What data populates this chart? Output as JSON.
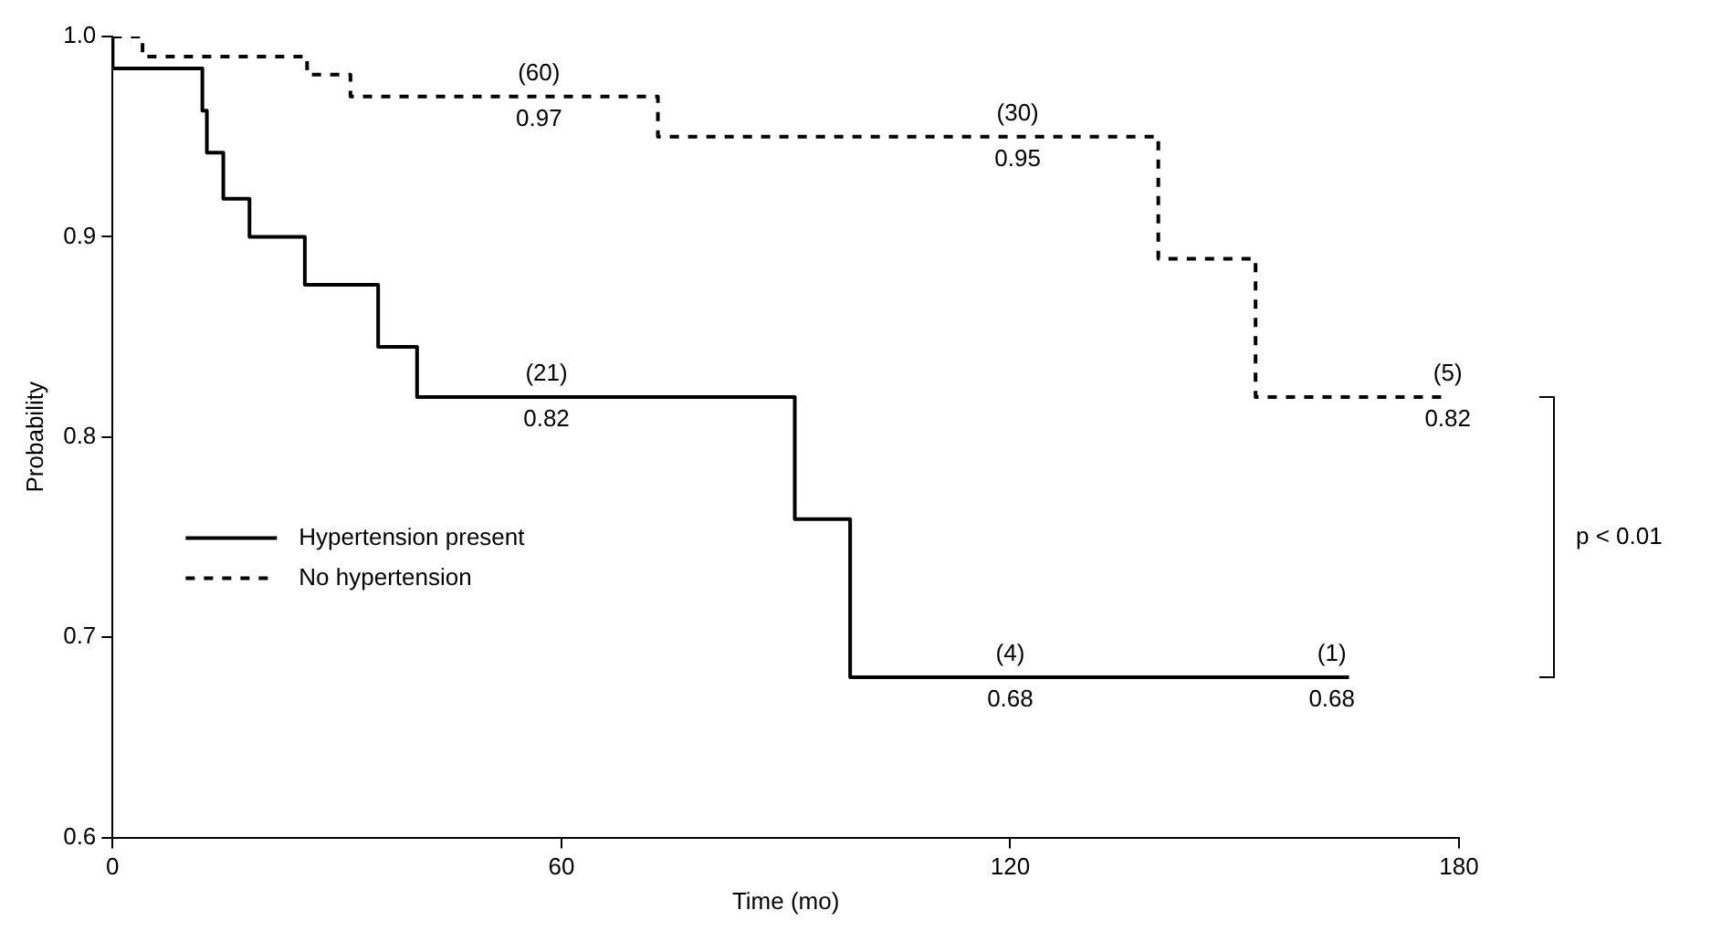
{
  "chart_data": {
    "type": "step",
    "xlabel": "Time (mo)",
    "ylabel": "Probability",
    "xlim": [
      0,
      180
    ],
    "xticks": [
      0,
      60,
      120,
      180
    ],
    "ylim": [
      0.6,
      1.0
    ],
    "yticks": [
      0.6,
      0.7,
      0.8,
      0.9,
      {
        "value": 1,
        "label": "1.0"
      }
    ],
    "grid": false,
    "legend": "bottom left",
    "marker": "none",
    "series": [
      {
        "name": "Hypertension present",
        "color": "#000000",
        "line_style": "solid",
        "x": [
          0,
          0,
          12,
          12.6,
          14.8,
          18.3,
          25.7,
          35.5,
          40.7,
          91.2,
          98.6,
          165.3
        ],
        "values": [
          1,
          0.984,
          0.963,
          0.942,
          0.919,
          0.9,
          0.876,
          0.845,
          0.82,
          0.759,
          0.68,
          0.68
        ]
      },
      {
        "name": "No hypertension",
        "color": "#000000",
        "line_style": "dashed",
        "x": [
          0,
          4,
          26,
          31.8,
          72.9,
          139.8,
          152.8,
          178.5
        ],
        "values": [
          1,
          0.99,
          0.981,
          0.97,
          0.95,
          0.889,
          0.82,
          0.82
        ]
      }
    ],
    "annotations": [
      {
        "text": "(60)",
        "x": 57,
        "y": 0.97
      },
      {
        "text": "0.97",
        "x": 57,
        "y": 0.97
      },
      {
        "text": "(30)",
        "x": 121,
        "y": 0.95
      },
      {
        "text": "0.95",
        "x": 121,
        "y": 0.95
      },
      {
        "text": "(5)",
        "x": 178.5,
        "y": 0.82
      },
      {
        "text": "0.82",
        "x": 178.5,
        "y": 0.82
      },
      {
        "text": "(21)",
        "x": 58,
        "y": 0.82
      },
      {
        "text": "0.82",
        "x": 58,
        "y": 0.82
      },
      {
        "text": "(4)",
        "x": 120,
        "y": 0.68
      },
      {
        "text": "0.68",
        "x": 120,
        "y": 0.68
      },
      {
        "text": "(1)",
        "x": 163,
        "y": 0.68
      },
      {
        "text": "0.68",
        "x": 163,
        "y": 0.68
      },
      "p < 0.01"
    ]
  }
}
